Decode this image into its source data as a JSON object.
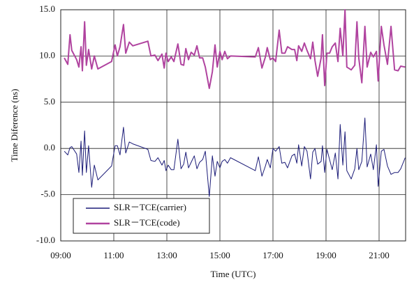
{
  "chart_data": {
    "type": "line",
    "xlabel": "Time (UTC)",
    "ylabel": "Time Diference (ns)",
    "xlim": [
      "09:00",
      "22:00"
    ],
    "xticks": [
      "09:00",
      "11:00",
      "13:00",
      "15:00",
      "17:00",
      "19:00",
      "21:00"
    ],
    "ylim": [
      -10,
      15
    ],
    "yticks": [
      {
        "value": -10,
        "label": "-10.0"
      },
      {
        "value": -5,
        "label": "-5.0"
      },
      {
        "value": 0,
        "label": "0.0"
      },
      {
        "value": 5,
        "label": "5.0"
      },
      {
        "value": 10,
        "label": "10.0"
      },
      {
        "value": 15,
        "label": "15.0"
      }
    ],
    "grid": true,
    "legend": "lower left",
    "x": [
      "09:08",
      "09:16",
      "09:21",
      "09:25",
      "09:36",
      "09:41",
      "09:46",
      "09:49",
      "09:54",
      "09:58",
      "10:03",
      "10:10",
      "10:16",
      "10:24",
      "10:55",
      "11:03",
      "11:08",
      "11:14",
      "11:22",
      "11:27",
      "11:35",
      "11:43",
      "12:17",
      "12:24",
      "12:33",
      "12:40",
      "12:49",
      "12:54",
      "12:58",
      "13:03",
      "13:10",
      "13:16",
      "13:25",
      "13:32",
      "13:38",
      "13:43",
      "13:49",
      "13:55",
      "14:02",
      "14:08",
      "14:14",
      "14:21",
      "14:27",
      "14:36",
      "14:43",
      "14:49",
      "14:54",
      "15:00",
      "15:05",
      "15:11",
      "15:17",
      "15:24",
      "16:20",
      "16:27",
      "16:35",
      "16:43",
      "16:47",
      "16:54",
      "17:00",
      "17:06",
      "17:14",
      "17:20",
      "17:27",
      "17:33",
      "17:43",
      "17:49",
      "17:54",
      "17:58",
      "18:05",
      "18:11",
      "18:17",
      "18:25",
      "18:30",
      "18:35",
      "18:41",
      "18:49",
      "18:52",
      "18:57",
      "19:02",
      "19:08",
      "19:14",
      "19:21",
      "19:27",
      "19:32",
      "19:38",
      "19:43",
      "19:47",
      "19:57",
      "20:05",
      "20:10",
      "20:14",
      "20:21",
      "20:28",
      "20:33",
      "20:41",
      "20:47",
      "20:54",
      "20:58",
      "21:05",
      "21:11",
      "21:19",
      "21:27",
      "21:35",
      "21:43",
      "21:49",
      "21:59"
    ],
    "series": [
      {
        "name": "SLR－TCE(carrier)",
        "color": "#1c1c78",
        "width": 1,
        "values": [
          -0.3,
          -0.7,
          0.1,
          0.2,
          -0.6,
          -2.6,
          0.8,
          -2.9,
          1.9,
          -2.6,
          0.3,
          -4.2,
          -1.8,
          -3.4,
          -1.9,
          0.3,
          0.3,
          -0.7,
          2.3,
          -0.5,
          0.7,
          0.5,
          -0.1,
          -1.3,
          -1.4,
          -1.0,
          -1.8,
          -1.3,
          -2.4,
          -1.8,
          -2.3,
          -2.3,
          1.0,
          -2.2,
          -1.7,
          -0.4,
          -2.1,
          -1.5,
          -0.8,
          -2.2,
          -1.5,
          -1.2,
          -0.3,
          -5.2,
          -0.8,
          -3.0,
          -1.4,
          -2.1,
          -1.4,
          -1.2,
          -1.6,
          -1.0,
          -2.4,
          -0.9,
          -3.0,
          -1.9,
          -1.2,
          -2.1,
          0.0,
          -0.3,
          0.2,
          -1.6,
          -1.5,
          -2.1,
          -0.8,
          -0.6,
          -1.6,
          0.4,
          -1.9,
          0.2,
          -0.3,
          -3.3,
          -0.4,
          0.0,
          -1.7,
          -1.4,
          0.3,
          -2.6,
          -0.1,
          -1.2,
          -2.3,
          -0.5,
          -3.3,
          2.6,
          -1.8,
          1.8,
          -2.4,
          -3.3,
          -2.2,
          0.0,
          -2.3,
          -1.4,
          3.3,
          -2.0,
          -0.6,
          -2.3,
          0.4,
          -4.1,
          -0.3,
          -0.1,
          -1.9,
          -2.8,
          -2.6,
          -2.6,
          -2.2,
          -1.0
        ]
      },
      {
        "name": "SLR－TCE(code)",
        "color": "#b0439f",
        "width": 2,
        "values": [
          9.8,
          9.1,
          12.3,
          10.6,
          9.6,
          8.8,
          11.0,
          8.4,
          13.7,
          9.0,
          10.7,
          8.6,
          10.0,
          8.6,
          9.4,
          11.2,
          10.0,
          11.0,
          13.4,
          10.3,
          11.5,
          11.1,
          11.6,
          10.0,
          10.1,
          9.5,
          10.2,
          8.7,
          10.3,
          9.4,
          9.9,
          9.4,
          11.3,
          9.1,
          9.0,
          10.8,
          9.6,
          10.4,
          10.1,
          11.1,
          9.8,
          9.8,
          8.8,
          6.5,
          8.3,
          11.2,
          8.8,
          10.5,
          9.6,
          10.5,
          9.7,
          10.0,
          9.9,
          10.9,
          8.7,
          9.9,
          10.9,
          9.6,
          9.8,
          9.4,
          12.8,
          10.3,
          10.3,
          11.0,
          10.7,
          10.7,
          9.5,
          11.1,
          10.5,
          11.4,
          10.6,
          9.7,
          11.5,
          9.5,
          7.8,
          9.8,
          12.3,
          6.8,
          10.3,
          10.3,
          11.0,
          11.4,
          9.4,
          13.0,
          10.0,
          15.0,
          8.8,
          8.5,
          9.0,
          13.7,
          9.8,
          7.1,
          13.2,
          8.8,
          10.4,
          9.9,
          10.5,
          7.3,
          13.2,
          11.2,
          9.1,
          13.2,
          8.5,
          8.4,
          8.9,
          8.8
        ]
      }
    ]
  }
}
